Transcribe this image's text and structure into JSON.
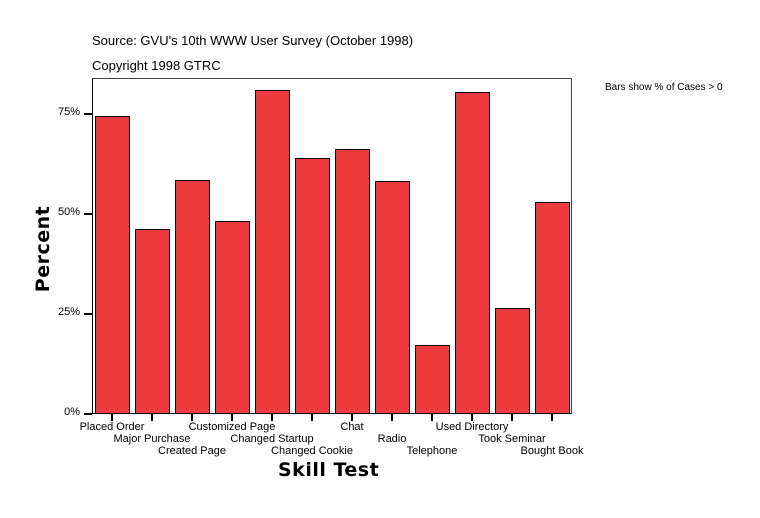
{
  "header": {
    "source": "Source: GVU's 10th WWW User Survey (October 1998)",
    "copyright": "Copyright 1998 GTRC",
    "note": "Bars show % of Cases > 0"
  },
  "colors": {
    "bar": "#ec3a3d",
    "outline": "#000000"
  },
  "chart_data": {
    "type": "bar",
    "title": "Source: GVU's 10th WWW User Survey (October 1998)",
    "subtitle": "Copyright 1998 GTRC",
    "annotation": "Bars show % of Cases > 0",
    "xlabel": "Skill Test",
    "ylabel": "Percent",
    "ylim": [
      0,
      84
    ],
    "yticks": [
      "0%",
      "25%",
      "50%",
      "75%"
    ],
    "grid": false,
    "categories": [
      "Placed Order",
      "Major Purchase",
      "Created Page",
      "Customized Page",
      "Changed Startup",
      "Changed Cookie",
      "Chat",
      "Radio",
      "Telephone",
      "Used Directory",
      "Took Seminar",
      "Bought Book"
    ],
    "values": [
      74.0,
      45.8,
      58.0,
      47.9,
      80.5,
      63.5,
      65.8,
      57.8,
      16.9,
      80.0,
      26.1,
      52.6
    ]
  }
}
